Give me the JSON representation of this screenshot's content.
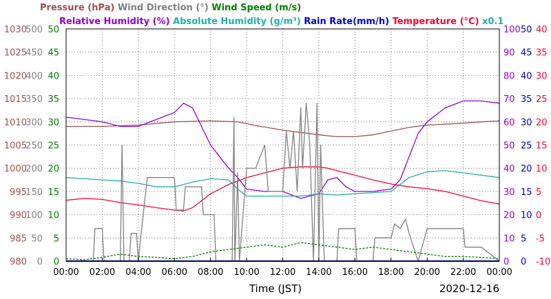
{
  "chart_data": {
    "type": "line",
    "title": "",
    "date": "2020-12-16",
    "xlabel": "Time (JST)",
    "x_ticks": [
      "00:00",
      "02:00",
      "04:00",
      "06:00",
      "08:00",
      "10:00",
      "12:00",
      "14:00",
      "16:00",
      "18:00",
      "20:00",
      "22:00",
      "00:00"
    ],
    "x_range_hours": [
      0,
      24
    ],
    "grid": true,
    "legend": {
      "row1": [
        {
          "name": "Pressure (hPa)",
          "color": "#a05050"
        },
        {
          "name": "Wind Direction (°)",
          "color": "#808080"
        },
        {
          "name": "Wind Speed (m/s)",
          "color": "#008000"
        }
      ],
      "row2": [
        {
          "name": "Relative Humidity (%)",
          "color": "#9400d3"
        },
        {
          "name": "Absolute Humidity (g/m³)",
          "color": "#20b2aa"
        },
        {
          "name": "Rain Rate(mm/h)",
          "color": "#0000cd"
        },
        {
          "name": "Temperature (°C)",
          "color": "#ff0033"
        },
        {
          "name": "x0.1",
          "color": "#20b2aa"
        }
      ]
    },
    "axes": {
      "pressure": {
        "min": 980,
        "max": 1030,
        "ticks": [
          "980",
          "985",
          "990",
          "995",
          "1000",
          "1005",
          "1010",
          "1015",
          "1020",
          "1025",
          "1030"
        ],
        "color": "#a05050"
      },
      "wind_direction": {
        "min": 0,
        "max": 500,
        "ticks": [
          "0",
          "50",
          "100",
          "150",
          "200",
          "250",
          "300",
          "350",
          "400",
          "450",
          "500"
        ],
        "color": "#808080"
      },
      "wind_speed": {
        "min": 0,
        "max": 50,
        "ticks": [
          "0",
          "5",
          "10",
          "15",
          "20",
          "25",
          "30",
          "35",
          "40",
          "45",
          "50"
        ],
        "color": "#008000"
      },
      "humidity": {
        "min": 0,
        "max": 100,
        "ticks": [
          "0",
          "10",
          "20",
          "30",
          "40",
          "50",
          "60",
          "70",
          "80",
          "90",
          "100"
        ],
        "color": "#9400d3"
      },
      "rain_rate": {
        "min": 0,
        "max": 50,
        "ticks": [
          "0",
          "5",
          "10",
          "15",
          "20",
          "25",
          "30",
          "35",
          "40",
          "45",
          "50"
        ],
        "color": "#0000cd"
      },
      "temperature": {
        "min": -10,
        "max": 40,
        "ticks": [
          "-10",
          "-5",
          "0",
          "5",
          "10",
          "15",
          "20",
          "25",
          "30",
          "35",
          "40"
        ],
        "color": "#ff0033"
      }
    },
    "series": [
      {
        "name": "Pressure (hPa)",
        "axis": "pressure",
        "color": "#a05050",
        "points": [
          [
            0,
            1009
          ],
          [
            2,
            1009
          ],
          [
            4,
            1009.3
          ],
          [
            6,
            1010
          ],
          [
            8,
            1010.2
          ],
          [
            9.5,
            1010
          ],
          [
            10.5,
            1009.2
          ],
          [
            12,
            1008.2
          ],
          [
            14,
            1007.2
          ],
          [
            15,
            1006.8
          ],
          [
            16,
            1006.8
          ],
          [
            17,
            1007.2
          ],
          [
            18,
            1008
          ],
          [
            19,
            1008.8
          ],
          [
            20,
            1009.3
          ],
          [
            21,
            1009.5
          ],
          [
            22,
            1009.7
          ],
          [
            23,
            1010
          ],
          [
            24,
            1010.2
          ]
        ]
      },
      {
        "name": "Relative Humidity (%)",
        "axis": "humidity",
        "color": "#9400d3",
        "points": [
          [
            0,
            62
          ],
          [
            1,
            61
          ],
          [
            2,
            60
          ],
          [
            3,
            58
          ],
          [
            4,
            58
          ],
          [
            5,
            61
          ],
          [
            6,
            64
          ],
          [
            6.5,
            68
          ],
          [
            7,
            66
          ],
          [
            7.5,
            58
          ],
          [
            8,
            50
          ],
          [
            8.5,
            45
          ],
          [
            9,
            40
          ],
          [
            9.5,
            36
          ],
          [
            10,
            31
          ],
          [
            11,
            30
          ],
          [
            12,
            30
          ],
          [
            13,
            27
          ],
          [
            14,
            29
          ],
          [
            14.5,
            35
          ],
          [
            15,
            36
          ],
          [
            15.5,
            32
          ],
          [
            16,
            30
          ],
          [
            17,
            30
          ],
          [
            18,
            31
          ],
          [
            18.5,
            35
          ],
          [
            19,
            45
          ],
          [
            19.5,
            55
          ],
          [
            20,
            60
          ],
          [
            21,
            66
          ],
          [
            22,
            69
          ],
          [
            23,
            69
          ],
          [
            24,
            68
          ]
        ]
      },
      {
        "name": "Absolute Humidity (g/m³)",
        "axis": "humidity",
        "color": "#20b2aa",
        "points": [
          [
            0,
            36
          ],
          [
            1,
            35.5
          ],
          [
            2,
            35
          ],
          [
            3,
            34.5
          ],
          [
            4,
            33.5
          ],
          [
            5,
            32
          ],
          [
            6,
            32
          ],
          [
            7,
            34
          ],
          [
            8,
            35.5
          ],
          [
            9,
            35
          ],
          [
            9.5,
            31
          ],
          [
            10,
            28
          ],
          [
            11,
            28
          ],
          [
            12,
            28
          ],
          [
            13,
            28
          ],
          [
            14,
            29
          ],
          [
            15,
            28.5
          ],
          [
            16,
            29
          ],
          [
            17,
            29.5
          ],
          [
            18,
            30
          ],
          [
            18.5,
            33
          ],
          [
            19,
            36
          ],
          [
            20,
            38.5
          ],
          [
            21,
            39
          ],
          [
            22,
            38
          ],
          [
            23,
            37
          ],
          [
            24,
            36
          ]
        ]
      },
      {
        "name": "Temperature (°C)",
        "axis": "temperature",
        "color": "#ff0033",
        "points": [
          [
            0,
            3.1
          ],
          [
            1,
            3.5
          ],
          [
            2,
            3.3
          ],
          [
            3,
            2.6
          ],
          [
            4,
            2.1
          ],
          [
            5,
            1.5
          ],
          [
            6,
            1.0
          ],
          [
            6.5,
            0.8
          ],
          [
            7,
            1.5
          ],
          [
            7.5,
            3
          ],
          [
            8,
            4.5
          ],
          [
            9,
            6.5
          ],
          [
            10,
            8
          ],
          [
            11,
            9
          ],
          [
            12,
            10
          ],
          [
            13,
            10.3
          ],
          [
            14,
            10.3
          ],
          [
            14.5,
            10
          ],
          [
            15,
            9.5
          ],
          [
            16,
            8.5
          ],
          [
            17,
            7.5
          ],
          [
            18,
            6.6
          ],
          [
            19,
            6
          ],
          [
            20,
            5.6
          ],
          [
            21,
            5
          ],
          [
            22,
            4
          ],
          [
            23,
            3
          ],
          [
            24,
            2.3
          ]
        ]
      },
      {
        "name": "Wind Direction (°)",
        "axis": "wind_direction",
        "color": "#808080",
        "points": [
          [
            0,
            0
          ],
          [
            1.5,
            0
          ],
          [
            1.6,
            70
          ],
          [
            2,
            70
          ],
          [
            2.1,
            0
          ],
          [
            3,
            0
          ],
          [
            3.1,
            250
          ],
          [
            3.2,
            0
          ],
          [
            3.5,
            0
          ],
          [
            3.6,
            60
          ],
          [
            3.9,
            60
          ],
          [
            4,
            0
          ],
          [
            4.1,
            40
          ],
          [
            4.5,
            180
          ],
          [
            6,
            180
          ],
          [
            6.1,
            110
          ],
          [
            6.5,
            110
          ],
          [
            6.6,
            160
          ],
          [
            7.5,
            160
          ],
          [
            7.6,
            100
          ],
          [
            8.2,
            100
          ],
          [
            8.3,
            0
          ],
          [
            9.2,
            0
          ],
          [
            9.3,
            310
          ],
          [
            9.35,
            0
          ],
          [
            9.5,
            190
          ],
          [
            9.6,
            0
          ],
          [
            10,
            200
          ],
          [
            10.5,
            200
          ],
          [
            11,
            250
          ],
          [
            11.2,
            150
          ],
          [
            12,
            150
          ],
          [
            12.2,
            280
          ],
          [
            12.4,
            200
          ],
          [
            12.6,
            280
          ],
          [
            12.8,
            150
          ],
          [
            13,
            330
          ],
          [
            13.1,
            200
          ],
          [
            13.3,
            340
          ],
          [
            13.5,
            250
          ],
          [
            13.7,
            0
          ],
          [
            13.9,
            340
          ],
          [
            14,
            0
          ],
          [
            14.1,
            250
          ],
          [
            14.3,
            0
          ],
          [
            15,
            0
          ],
          [
            15.1,
            70
          ],
          [
            16,
            70
          ],
          [
            16.1,
            0
          ],
          [
            17,
            0
          ],
          [
            17.1,
            50
          ],
          [
            18,
            50
          ],
          [
            18.2,
            80
          ],
          [
            18.5,
            70
          ],
          [
            18.8,
            90
          ],
          [
            19,
            60
          ],
          [
            19.5,
            0
          ],
          [
            20,
            70
          ],
          [
            22,
            70
          ],
          [
            22.1,
            30
          ],
          [
            23,
            30
          ],
          [
            24,
            0
          ]
        ]
      },
      {
        "name": "Wind Speed (m/s)",
        "axis": "wind_speed",
        "color": "#008000",
        "points": [
          [
            0,
            0.5
          ],
          [
            1,
            0.3
          ],
          [
            2,
            0.8
          ],
          [
            3,
            1.5
          ],
          [
            4,
            1
          ],
          [
            5,
            0.8
          ],
          [
            6,
            0.5
          ],
          [
            7,
            1
          ],
          [
            8,
            2
          ],
          [
            9,
            2.5
          ],
          [
            10,
            3
          ],
          [
            11,
            3.5
          ],
          [
            12,
            3
          ],
          [
            13,
            4
          ],
          [
            14,
            3.5
          ],
          [
            15,
            3
          ],
          [
            16,
            2.5
          ],
          [
            17,
            3
          ],
          [
            18,
            2.5
          ],
          [
            19,
            2
          ],
          [
            20,
            1.5
          ],
          [
            21,
            1
          ],
          [
            22,
            1
          ],
          [
            23,
            0.8
          ],
          [
            24,
            0.5
          ]
        ]
      },
      {
        "name": "Rain Rate(mm/h)",
        "axis": "rain_rate",
        "color": "#0000cd",
        "points": [
          [
            0,
            0
          ],
          [
            24,
            0
          ]
        ]
      }
    ]
  }
}
